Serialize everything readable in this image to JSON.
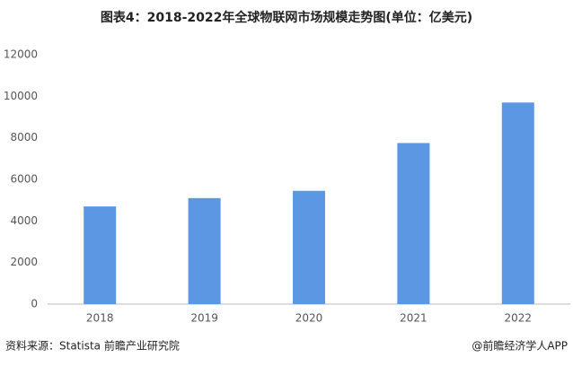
{
  "chart_data": {
    "type": "bar",
    "title": "图表4：2018-2022年全球物联网市场规模走势图(单位：亿美元)",
    "categories": [
      "2018",
      "2019",
      "2020",
      "2021",
      "2022"
    ],
    "values": [
      4700,
      5100,
      5450,
      7750,
      9700
    ],
    "color": "#5b97e3",
    "ylim": [
      0,
      12000
    ],
    "yticks": [
      0,
      2000,
      4000,
      6000,
      8000,
      10000,
      12000
    ],
    "grid": false,
    "source": "资料来源：Statista 前瞻产业研究院",
    "credit": "@前瞻经济学人APP"
  }
}
